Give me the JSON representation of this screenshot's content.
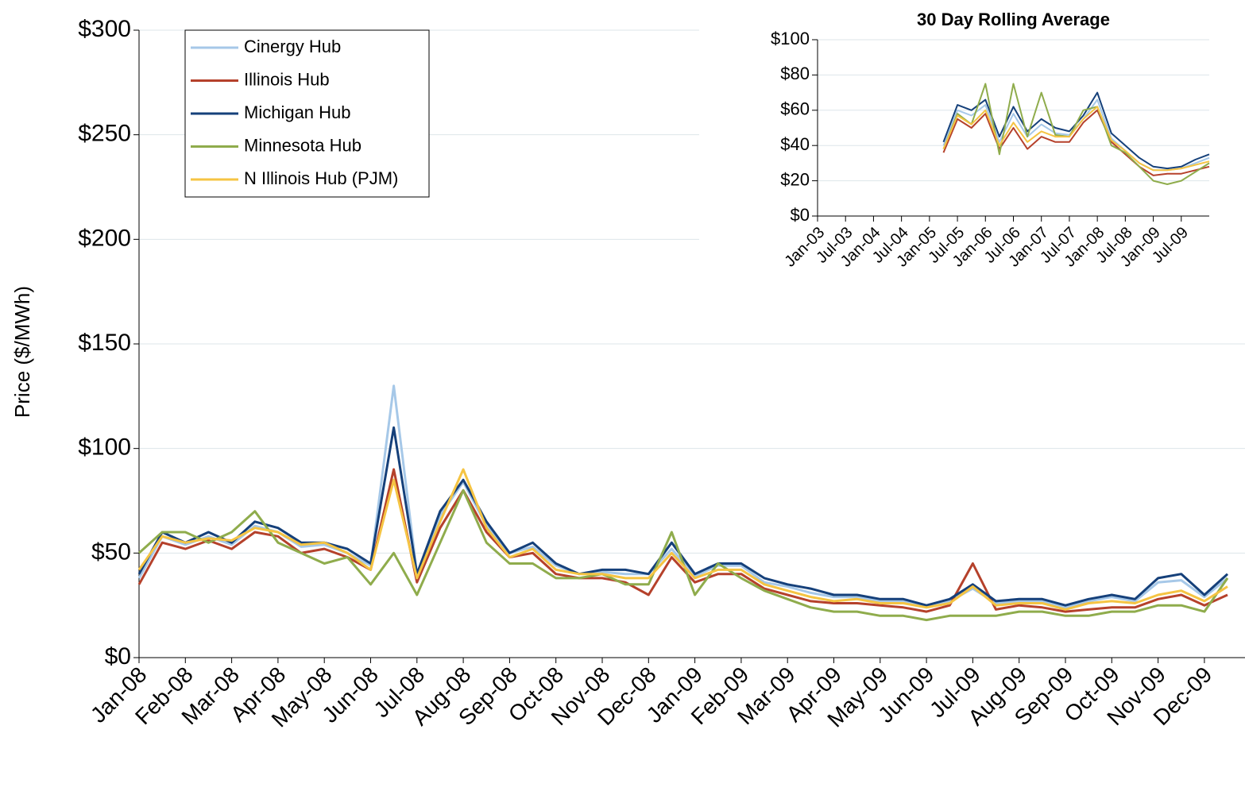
{
  "chart_data": [
    {
      "type": "line",
      "y_label": "Price ($/MWh)",
      "categories": [
        "Jan-08",
        null,
        "Feb-08",
        null,
        "Mar-08",
        null,
        "Apr-08",
        null,
        "May-08",
        null,
        "Jun-08",
        null,
        "Jul-08",
        null,
        "Aug-08",
        null,
        "Sep-08",
        null,
        "Oct-08",
        null,
        "Nov-08",
        null,
        "Dec-08",
        null,
        "Jan-09",
        null,
        "Feb-09",
        null,
        "Mar-09",
        null,
        "Apr-09",
        null,
        "May-09",
        null,
        "Jun-09",
        null,
        "Jul-09",
        null,
        "Aug-09",
        null,
        "Sep-09",
        null,
        "Oct-09",
        null,
        "Nov-09",
        null,
        "Dec-09",
        null
      ],
      "ylim": [
        0,
        300
      ],
      "yticks": [
        {
          "value": 0,
          "label": "$0"
        },
        {
          "value": 50,
          "label": "$50"
        },
        {
          "value": 100,
          "label": "$100"
        },
        {
          "value": 150,
          "label": "$150"
        },
        {
          "value": 200,
          "label": "$200"
        },
        {
          "value": 250,
          "label": "$250"
        },
        {
          "value": 300,
          "label": "$300"
        }
      ],
      "grid": true,
      "legend": "upper left",
      "series": [
        {
          "name": "Cinergy Hub",
          "color": "#a6c8e8",
          "values": [
            38,
            58,
            54,
            58,
            54,
            63,
            60,
            53,
            54,
            50,
            44,
            130,
            40,
            68,
            84,
            63,
            50,
            53,
            44,
            40,
            41,
            40,
            40,
            52,
            39,
            44,
            44,
            36,
            34,
            31,
            29,
            29,
            27,
            27,
            25,
            27,
            33,
            26,
            27,
            27,
            24,
            27,
            29,
            27,
            36,
            37,
            29,
            38
          ]
        },
        {
          "name": "Illinois Hub",
          "color": "#b5412b",
          "values": [
            35,
            55,
            52,
            56,
            52,
            60,
            58,
            50,
            52,
            48,
            42,
            90,
            36,
            62,
            80,
            60,
            48,
            50,
            40,
            38,
            38,
            36,
            30,
            48,
            36,
            40,
            40,
            33,
            30,
            27,
            26,
            26,
            25,
            24,
            22,
            25,
            45,
            23,
            25,
            24,
            22,
            23,
            24,
            24,
            28,
            30,
            25,
            30
          ]
        },
        {
          "name": "Michigan Hub",
          "color": "#15407a",
          "values": [
            40,
            60,
            55,
            60,
            55,
            65,
            62,
            55,
            55,
            52,
            45,
            110,
            40,
            70,
            85,
            65,
            50,
            55,
            45,
            40,
            42,
            42,
            40,
            55,
            40,
            45,
            45,
            38,
            35,
            33,
            30,
            30,
            28,
            28,
            25,
            28,
            35,
            27,
            28,
            28,
            25,
            28,
            30,
            28,
            38,
            40,
            30,
            40
          ]
        },
        {
          "name": "Minnesota Hub",
          "color": "#8fac4c",
          "values": [
            50,
            60,
            60,
            55,
            60,
            70,
            55,
            50,
            45,
            48,
            35,
            50,
            30,
            55,
            80,
            55,
            45,
            45,
            38,
            38,
            40,
            35,
            35,
            60,
            30,
            45,
            38,
            32,
            28,
            24,
            22,
            22,
            20,
            20,
            18,
            20,
            20,
            20,
            22,
            22,
            20,
            20,
            22,
            22,
            25,
            25,
            22,
            38
          ]
        },
        {
          "name": "N Illinois Hub (PJM)",
          "color": "#f5c443",
          "values": [
            42,
            58,
            55,
            57,
            56,
            62,
            60,
            54,
            55,
            50,
            42,
            85,
            38,
            65,
            90,
            62,
            48,
            52,
            42,
            40,
            40,
            38,
            38,
            50,
            38,
            42,
            42,
            35,
            32,
            29,
            27,
            28,
            26,
            26,
            24,
            26,
            34,
            25,
            26,
            26,
            23,
            26,
            27,
            26,
            30,
            32,
            27,
            34
          ]
        }
      ]
    },
    {
      "type": "line",
      "title": "30 Day Rolling Average",
      "categories": [
        "Jan-03",
        null,
        "Jul-03",
        null,
        "Jan-04",
        null,
        "Jul-04",
        null,
        "Jan-05",
        null,
        "Jul-05",
        null,
        "Jan-06",
        null,
        "Jul-06",
        null,
        "Jan-07",
        null,
        "Jul-07",
        null,
        "Jan-08",
        null,
        "Jul-08",
        null,
        "Jan-09",
        null,
        "Jul-09",
        null,
        null
      ],
      "ylim": [
        0,
        100
      ],
      "yticks": [
        {
          "value": 0,
          "label": "$0"
        },
        {
          "value": 20,
          "label": "$20"
        },
        {
          "value": 40,
          "label": "$40"
        },
        {
          "value": 60,
          "label": "$60"
        },
        {
          "value": 80,
          "label": "$80"
        },
        {
          "value": 100,
          "label": "$100"
        }
      ],
      "grid": true,
      "series": [
        {
          "name": "Cinergy Hub",
          "color": "#a6c8e8",
          "values": [
            null,
            null,
            null,
            null,
            null,
            null,
            null,
            null,
            null,
            40,
            60,
            57,
            63,
            42,
            58,
            45,
            52,
            47,
            46,
            55,
            66,
            44,
            37,
            30,
            26,
            26,
            27,
            30,
            33
          ]
        },
        {
          "name": "Illinois Hub",
          "color": "#b5412b",
          "values": [
            null,
            null,
            null,
            null,
            null,
            null,
            null,
            null,
            null,
            36,
            55,
            50,
            58,
            38,
            50,
            38,
            45,
            42,
            42,
            53,
            60,
            42,
            35,
            28,
            23,
            24,
            24,
            26,
            28
          ]
        },
        {
          "name": "Michigan Hub",
          "color": "#15407a",
          "values": [
            null,
            null,
            null,
            null,
            null,
            null,
            null,
            null,
            null,
            42,
            63,
            60,
            66,
            45,
            62,
            48,
            55,
            50,
            48,
            57,
            70,
            47,
            40,
            33,
            28,
            27,
            28,
            32,
            35
          ]
        },
        {
          "name": "Minnesota Hub",
          "color": "#8fac4c",
          "values": [
            null,
            null,
            null,
            null,
            null,
            null,
            null,
            null,
            null,
            38,
            58,
            52,
            75,
            35,
            75,
            45,
            70,
            46,
            45,
            60,
            62,
            40,
            36,
            28,
            20,
            18,
            20,
            25,
            30
          ]
        },
        {
          "name": "N Illinois Hub (PJM)",
          "color": "#f5c443",
          "values": [
            null,
            null,
            null,
            null,
            null,
            null,
            null,
            null,
            null,
            38,
            57,
            52,
            60,
            40,
            53,
            42,
            48,
            45,
            45,
            55,
            62,
            43,
            37,
            30,
            26,
            26,
            27,
            29,
            31
          ]
        }
      ]
    }
  ]
}
